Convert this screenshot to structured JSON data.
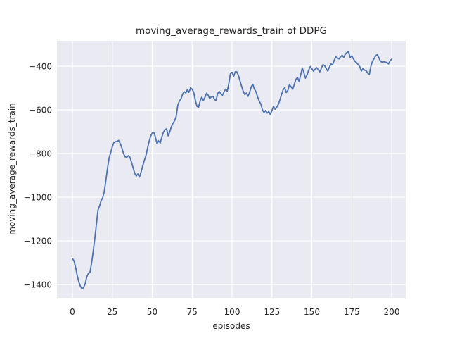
{
  "chart_data": {
    "type": "line",
    "title": "moving_average_rewards_train of DDPG",
    "xlabel": "episodes",
    "ylabel": "moving_average_rewards_train",
    "legend": "none",
    "grid": true,
    "style": "seaborn-darkgrid",
    "axes_bg_color": "#eaeaf2",
    "grid_color": "#ffffff",
    "line_color": "#4c72b0",
    "text_color": "#262626",
    "xlim": [
      -9.7,
      208.8
    ],
    "ylim": [
      -1461,
      -284
    ],
    "x_ticks": [
      0,
      25,
      50,
      75,
      100,
      125,
      150,
      175,
      200
    ],
    "x_tick_labels": [
      "0",
      "25",
      "50",
      "75",
      "100",
      "125",
      "150",
      "175",
      "200"
    ],
    "y_ticks": [
      -400,
      -600,
      -800,
      -1000,
      -1200,
      -1400
    ],
    "y_tick_labels": [
      "−400",
      "−600",
      "−800",
      "−1000",
      "−1200",
      "−1400"
    ],
    "series": [
      {
        "name": "moving_average_rewards_train",
        "x_start": 0,
        "x_step": 1,
        "y": [
          -1280,
          -1292,
          -1322,
          -1358,
          -1388,
          -1408,
          -1419,
          -1414,
          -1396,
          -1365,
          -1349,
          -1344,
          -1300,
          -1250,
          -1190,
          -1125,
          -1060,
          -1040,
          -1015,
          -1002,
          -972,
          -920,
          -865,
          -820,
          -795,
          -768,
          -750,
          -746,
          -744,
          -740,
          -755,
          -775,
          -800,
          -815,
          -818,
          -810,
          -816,
          -840,
          -865,
          -890,
          -903,
          -893,
          -908,
          -885,
          -858,
          -832,
          -812,
          -778,
          -745,
          -720,
          -707,
          -703,
          -726,
          -755,
          -742,
          -752,
          -725,
          -703,
          -690,
          -687,
          -719,
          -700,
          -677,
          -662,
          -650,
          -630,
          -580,
          -560,
          -550,
          -528,
          -517,
          -523,
          -507,
          -520,
          -499,
          -506,
          -520,
          -556,
          -584,
          -588,
          -560,
          -542,
          -557,
          -543,
          -524,
          -532,
          -549,
          -540,
          -538,
          -553,
          -556,
          -525,
          -516,
          -527,
          -533,
          -517,
          -505,
          -515,
          -478,
          -433,
          -428,
          -447,
          -426,
          -426,
          -443,
          -468,
          -492,
          -515,
          -530,
          -523,
          -538,
          -520,
          -495,
          -483,
          -505,
          -517,
          -540,
          -560,
          -572,
          -600,
          -612,
          -603,
          -615,
          -608,
          -621,
          -603,
          -584,
          -597,
          -588,
          -575,
          -555,
          -530,
          -508,
          -499,
          -521,
          -510,
          -484,
          -495,
          -505,
          -484,
          -460,
          -452,
          -470,
          -440,
          -408,
          -430,
          -455,
          -440,
          -418,
          -402,
          -411,
          -423,
          -414,
          -407,
          -416,
          -426,
          -409,
          -393,
          -398,
          -411,
          -423,
          -404,
          -390,
          -394,
          -373,
          -357,
          -362,
          -367,
          -357,
          -350,
          -360,
          -345,
          -337,
          -334,
          -360,
          -353,
          -366,
          -378,
          -384,
          -393,
          -402,
          -423,
          -410,
          -418,
          -420,
          -432,
          -438,
          -400,
          -377,
          -365,
          -352,
          -347,
          -362,
          -378,
          -382,
          -380,
          -381,
          -383,
          -390,
          -375,
          -368
        ]
      }
    ]
  }
}
